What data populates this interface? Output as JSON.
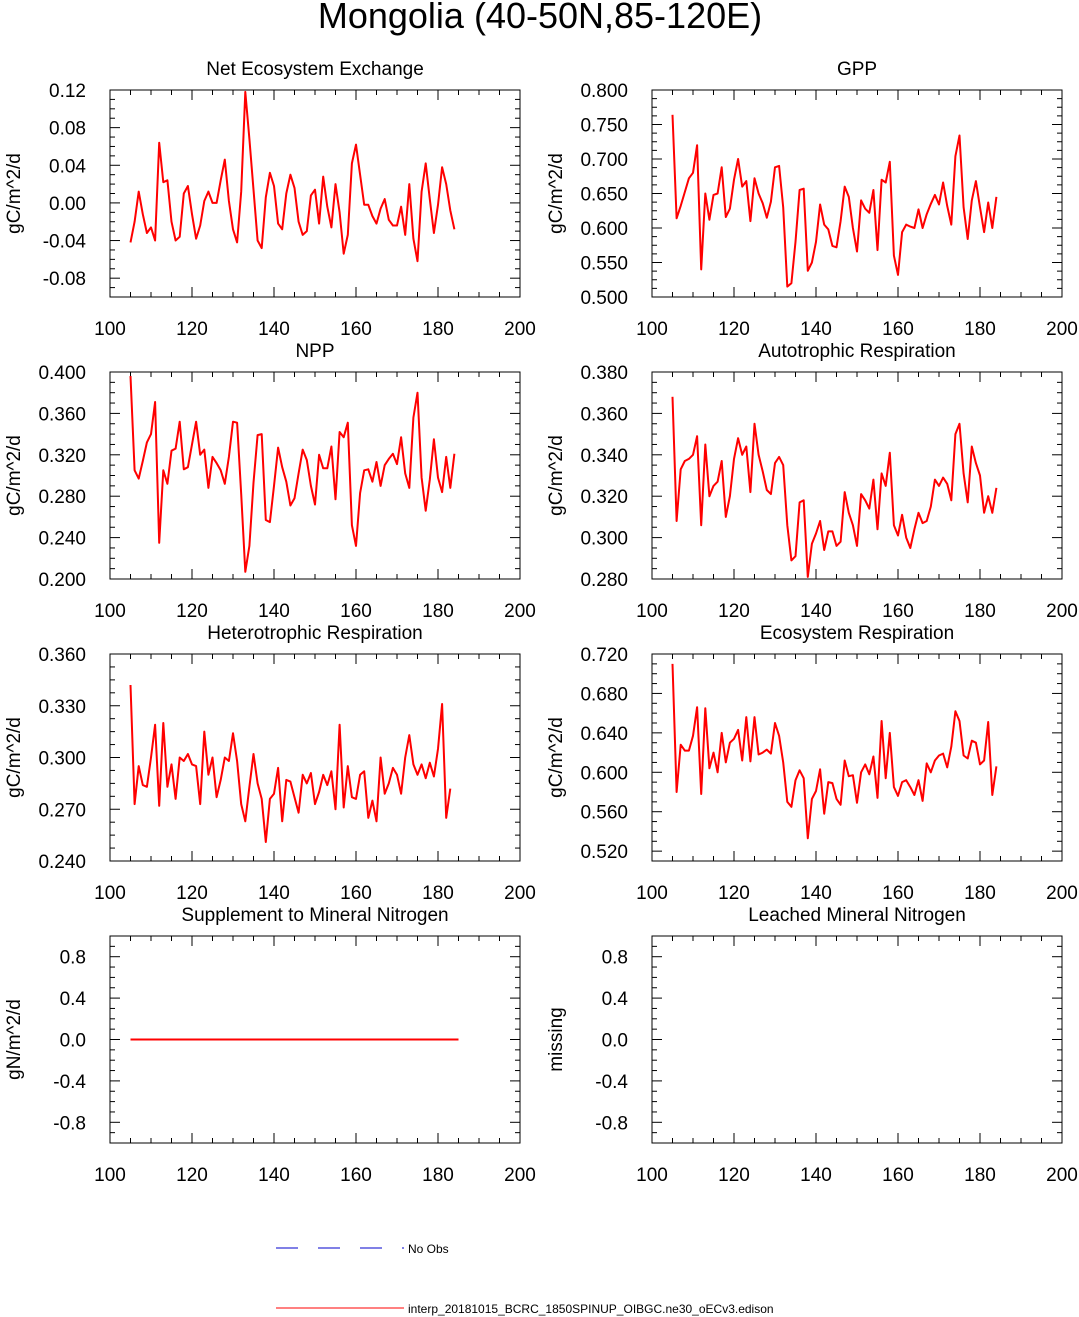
{
  "page_title": "Mongolia (40-50N,85-120E)",
  "legend": {
    "obs_label": "No Obs",
    "model_label": "interp_20181015_BCRC_1850SPINUP_OIBGC.ne30_oECv3.edison",
    "obs_color": "#0000cc",
    "model_color": "#ff0000"
  },
  "chart_data": [
    {
      "type": "line",
      "title": "Net Ecosystem Exchange",
      "ylabel": "gC/m^2/d",
      "xlim": [
        100,
        200
      ],
      "ylim": [
        -0.1,
        0.12
      ],
      "xticks": [
        "100",
        "120",
        "140",
        "160",
        "180",
        "200"
      ],
      "yticks": [
        "-0.08",
        "-0.04",
        "0.00",
        "0.04",
        "0.08",
        "0.12"
      ],
      "series": [
        {
          "x_start": 105,
          "values": [
            -0.042,
            -0.02,
            0.012,
            -0.012,
            -0.032,
            -0.026,
            -0.04,
            0.064,
            0.022,
            0.024,
            -0.02,
            -0.04,
            -0.036,
            0.01,
            0.018,
            -0.012,
            -0.038,
            -0.024,
            0.002,
            0.012,
            0.0,
            0.0,
            0.024,
            0.046,
            0.002,
            -0.028,
            -0.042,
            0.012,
            0.118,
            0.068,
            0.014,
            -0.04,
            -0.048,
            0.006,
            0.032,
            0.018,
            -0.022,
            -0.028,
            0.01,
            0.03,
            0.016,
            -0.02,
            -0.034,
            -0.03,
            0.008,
            0.014,
            -0.022,
            0.028,
            -0.004,
            -0.026,
            0.02,
            -0.01,
            -0.054,
            -0.034,
            0.042,
            0.062,
            0.03,
            -0.002,
            -0.002,
            -0.014,
            -0.022,
            -0.006,
            0.004,
            -0.018,
            -0.024,
            -0.024,
            -0.004,
            -0.034,
            0.02,
            -0.038,
            -0.062,
            0.012,
            0.042,
            0.004,
            -0.032,
            -0.002,
            0.038,
            0.02,
            -0.008,
            -0.028
          ]
        }
      ]
    },
    {
      "type": "line",
      "title": "GPP",
      "ylabel": "gC/m^2/d",
      "xlim": [
        100,
        200
      ],
      "ylim": [
        0.5,
        0.8
      ],
      "xticks": [
        "100",
        "120",
        "140",
        "160",
        "180",
        "200"
      ],
      "yticks": [
        "0.500",
        "0.550",
        "0.600",
        "0.650",
        "0.700",
        "0.750",
        "0.800"
      ],
      "series": [
        {
          "x_start": 105,
          "values": [
            0.764,
            0.614,
            0.632,
            0.652,
            0.672,
            0.68,
            0.72,
            0.54,
            0.65,
            0.612,
            0.648,
            0.65,
            0.688,
            0.616,
            0.628,
            0.67,
            0.7,
            0.66,
            0.668,
            0.61,
            0.672,
            0.65,
            0.636,
            0.615,
            0.638,
            0.688,
            0.69,
            0.63,
            0.515,
            0.52,
            0.58,
            0.655,
            0.657,
            0.538,
            0.55,
            0.58,
            0.634,
            0.605,
            0.598,
            0.574,
            0.572,
            0.61,
            0.66,
            0.645,
            0.6,
            0.566,
            0.64,
            0.628,
            0.622,
            0.655,
            0.568,
            0.67,
            0.666,
            0.696,
            0.56,
            0.532,
            0.594,
            0.605,
            0.602,
            0.6,
            0.627,
            0.6,
            0.62,
            0.635,
            0.648,
            0.634,
            0.666,
            0.632,
            0.605,
            0.704,
            0.734,
            0.63,
            0.584,
            0.64,
            0.668,
            0.63,
            0.594,
            0.637,
            0.6,
            0.645
          ]
        }
      ]
    },
    {
      "type": "line",
      "title": "NPP",
      "ylabel": "gC/m^2/d",
      "xlim": [
        100,
        200
      ],
      "ylim": [
        0.2,
        0.4
      ],
      "xticks": [
        "100",
        "120",
        "140",
        "160",
        "180",
        "200"
      ],
      "yticks": [
        "0.200",
        "0.240",
        "0.280",
        "0.320",
        "0.360",
        "0.400"
      ],
      "series": [
        {
          "x_start": 105,
          "values": [
            0.396,
            0.305,
            0.297,
            0.314,
            0.332,
            0.34,
            0.371,
            0.235,
            0.305,
            0.292,
            0.324,
            0.326,
            0.352,
            0.306,
            0.308,
            0.33,
            0.352,
            0.32,
            0.325,
            0.288,
            0.318,
            0.312,
            0.305,
            0.292,
            0.318,
            0.352,
            0.351,
            0.282,
            0.207,
            0.232,
            0.293,
            0.339,
            0.34,
            0.257,
            0.255,
            0.29,
            0.327,
            0.308,
            0.294,
            0.271,
            0.278,
            0.302,
            0.325,
            0.315,
            0.29,
            0.272,
            0.32,
            0.307,
            0.307,
            0.328,
            0.277,
            0.342,
            0.337,
            0.351,
            0.252,
            0.232,
            0.283,
            0.305,
            0.306,
            0.294,
            0.313,
            0.29,
            0.31,
            0.316,
            0.321,
            0.311,
            0.337,
            0.302,
            0.288,
            0.356,
            0.38,
            0.298,
            0.266,
            0.296,
            0.335,
            0.298,
            0.284,
            0.318,
            0.288,
            0.321
          ]
        }
      ]
    },
    {
      "type": "line",
      "title": "Autotrophic Respiration",
      "ylabel": "gC/m^2/d",
      "xlim": [
        100,
        200
      ],
      "ylim": [
        0.28,
        0.38
      ],
      "xticks": [
        "100",
        "120",
        "140",
        "160",
        "180",
        "200"
      ],
      "yticks": [
        "0.280",
        "0.300",
        "0.320",
        "0.340",
        "0.360",
        "0.380"
      ],
      "series": [
        {
          "x_start": 105,
          "values": [
            0.368,
            0.308,
            0.333,
            0.337,
            0.338,
            0.34,
            0.349,
            0.306,
            0.345,
            0.32,
            0.325,
            0.327,
            0.337,
            0.31,
            0.32,
            0.338,
            0.348,
            0.34,
            0.344,
            0.322,
            0.355,
            0.34,
            0.332,
            0.323,
            0.321,
            0.336,
            0.339,
            0.335,
            0.306,
            0.289,
            0.291,
            0.317,
            0.318,
            0.281,
            0.297,
            0.302,
            0.308,
            0.294,
            0.303,
            0.303,
            0.296,
            0.298,
            0.322,
            0.312,
            0.306,
            0.296,
            0.321,
            0.318,
            0.314,
            0.328,
            0.304,
            0.331,
            0.325,
            0.341,
            0.306,
            0.301,
            0.311,
            0.3,
            0.295,
            0.304,
            0.312,
            0.307,
            0.308,
            0.315,
            0.328,
            0.325,
            0.329,
            0.326,
            0.318,
            0.35,
            0.355,
            0.331,
            0.317,
            0.344,
            0.336,
            0.33,
            0.312,
            0.32,
            0.312,
            0.324
          ]
        }
      ]
    },
    {
      "type": "line",
      "title": "Heterotrophic Respiration",
      "ylabel": "gC/m^2/d",
      "xlim": [
        100,
        200
      ],
      "ylim": [
        0.24,
        0.36
      ],
      "xticks": [
        "100",
        "120",
        "140",
        "160",
        "180",
        "200"
      ],
      "yticks": [
        "0.240",
        "0.270",
        "0.300",
        "0.330",
        "0.360"
      ],
      "series": [
        {
          "x_start": 105,
          "values": [
            0.342,
            0.273,
            0.295,
            0.284,
            0.283,
            0.3,
            0.319,
            0.272,
            0.32,
            0.283,
            0.296,
            0.276,
            0.3,
            0.298,
            0.302,
            0.296,
            0.295,
            0.273,
            0.315,
            0.29,
            0.3,
            0.277,
            0.287,
            0.3,
            0.298,
            0.314,
            0.298,
            0.273,
            0.263,
            0.283,
            0.302,
            0.285,
            0.276,
            0.251,
            0.276,
            0.279,
            0.294,
            0.263,
            0.287,
            0.286,
            0.277,
            0.268,
            0.29,
            0.285,
            0.291,
            0.273,
            0.28,
            0.29,
            0.284,
            0.292,
            0.27,
            0.319,
            0.271,
            0.295,
            0.277,
            0.276,
            0.29,
            0.292,
            0.265,
            0.275,
            0.263,
            0.3,
            0.279,
            0.285,
            0.294,
            0.29,
            0.279,
            0.3,
            0.313,
            0.296,
            0.29,
            0.296,
            0.288,
            0.297,
            0.289,
            0.305,
            0.331,
            0.265,
            0.282
          ]
        }
      ]
    },
    {
      "type": "line",
      "title": "Ecosystem Respiration",
      "ylabel": "gC/m^2/d",
      "xlim": [
        100,
        200
      ],
      "ylim": [
        0.51,
        0.72
      ],
      "xticks": [
        "100",
        "120",
        "140",
        "160",
        "180",
        "200"
      ],
      "yticks": [
        "0.520",
        "0.560",
        "0.600",
        "0.640",
        "0.680",
        "0.720"
      ],
      "series": [
        {
          "x_start": 105,
          "values": [
            0.71,
            0.58,
            0.628,
            0.622,
            0.622,
            0.637,
            0.666,
            0.578,
            0.665,
            0.604,
            0.62,
            0.6,
            0.64,
            0.61,
            0.63,
            0.634,
            0.643,
            0.612,
            0.656,
            0.611,
            0.656,
            0.618,
            0.62,
            0.623,
            0.619,
            0.65,
            0.637,
            0.61,
            0.57,
            0.565,
            0.592,
            0.602,
            0.594,
            0.533,
            0.573,
            0.581,
            0.603,
            0.558,
            0.59,
            0.589,
            0.573,
            0.567,
            0.612,
            0.596,
            0.597,
            0.569,
            0.6,
            0.608,
            0.598,
            0.616,
            0.574,
            0.652,
            0.594,
            0.64,
            0.585,
            0.576,
            0.59,
            0.592,
            0.585,
            0.577,
            0.592,
            0.571,
            0.609,
            0.6,
            0.612,
            0.617,
            0.619,
            0.605,
            0.626,
            0.662,
            0.652,
            0.617,
            0.614,
            0.632,
            0.63,
            0.608,
            0.612,
            0.651,
            0.577,
            0.606
          ]
        }
      ]
    },
    {
      "type": "line",
      "title": "Supplement to Mineral Nitrogen",
      "ylabel": "gN/m^2/d",
      "xlim": [
        100,
        200
      ],
      "ylim": [
        -1.0,
        1.0
      ],
      "xticks": [
        "100",
        "120",
        "140",
        "160",
        "180",
        "200"
      ],
      "yticks": [
        "-0.8",
        "-0.4",
        "0.0",
        "0.4",
        "0.8"
      ],
      "series": [
        {
          "x": [
            105,
            185
          ],
          "values": [
            0.0,
            0.0
          ]
        }
      ]
    },
    {
      "type": "line",
      "title": "Leached Mineral Nitrogen",
      "ylabel": "missing",
      "xlim": [
        100,
        200
      ],
      "ylim": [
        -1.0,
        1.0
      ],
      "xticks": [
        "100",
        "120",
        "140",
        "160",
        "180",
        "200"
      ],
      "yticks": [
        "-0.8",
        "-0.4",
        "0.0",
        "0.4",
        "0.8"
      ],
      "series": []
    }
  ]
}
